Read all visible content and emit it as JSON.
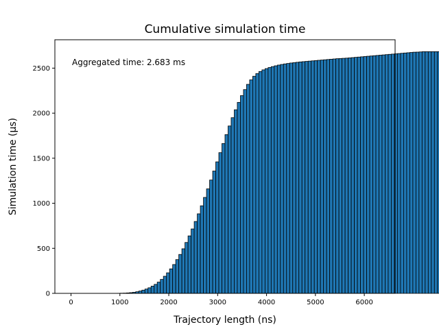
{
  "chart_data": {
    "type": "bar",
    "title": "Cumulative simulation time",
    "xlabel": "Trajectory length (ns)",
    "ylabel": "Simulation time (µs)",
    "annotation": "Aggregated time: 2.683 ms",
    "xlim": [
      -330,
      6630
    ],
    "ylim": [
      0,
      2815
    ],
    "xticks": [
      0,
      1000,
      2000,
      3000,
      4000,
      5000,
      6000
    ],
    "yticks": [
      0,
      500,
      1000,
      1500,
      2000,
      2500
    ],
    "bar_color": "#1f77b4",
    "edge_color": "#000000",
    "grid": false,
    "legend": "none",
    "bins_start": 0,
    "bin_width": 63,
    "values": [
      0,
      0,
      0,
      0,
      0,
      0,
      0,
      0,
      0,
      0,
      0,
      0,
      0,
      0,
      0,
      1,
      2,
      3,
      5,
      8,
      12,
      18,
      26,
      36,
      48,
      62,
      80,
      100,
      125,
      155,
      190,
      228,
      272,
      320,
      375,
      432,
      495,
      565,
      638,
      715,
      798,
      883,
      972,
      1065,
      1160,
      1258,
      1358,
      1460,
      1562,
      1663,
      1762,
      1858,
      1950,
      2038,
      2120,
      2195,
      2262,
      2320,
      2370,
      2410,
      2440,
      2463,
      2481,
      2495,
      2507,
      2517,
      2526,
      2534,
      2541,
      2547,
      2552,
      2557,
      2561,
      2565,
      2569,
      2572,
      2575,
      2578,
      2581,
      2584,
      2587,
      2590,
      2593,
      2596,
      2599,
      2602,
      2605,
      2607,
      2609,
      2611,
      2614,
      2617,
      2620,
      2623,
      2626,
      2629,
      2632,
      2635,
      2638,
      2641,
      2644,
      2647,
      2650,
      2653,
      2656,
      2659,
      2662,
      2665,
      2668,
      2671,
      2674,
      2677,
      2678,
      2680,
      2683,
      2683,
      2683,
      2683,
      2683,
      2683,
      2683
    ]
  }
}
